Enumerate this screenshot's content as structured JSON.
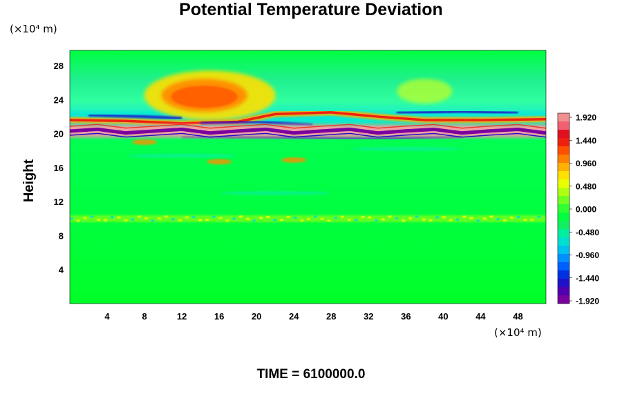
{
  "chart_data": {
    "type": "heatmap",
    "title": "Potential Temperature Deviation",
    "ylabel": "Height",
    "y_units": "(×10⁴ m)",
    "x_units": "(×10⁴ m)",
    "x_ticks": [
      4,
      8,
      12,
      16,
      20,
      24,
      28,
      32,
      36,
      40,
      44,
      48
    ],
    "y_ticks": [
      4,
      8,
      12,
      16,
      20,
      24,
      28
    ],
    "xlim": [
      0,
      51
    ],
    "ylim": [
      0,
      29.8
    ],
    "colorbar": {
      "tick_labels": [
        "1.920",
        "1.440",
        "0.960",
        "0.480",
        "0.000",
        "-0.480",
        "-0.960",
        "-1.440",
        "-1.920"
      ],
      "range": [
        -2.0,
        2.0
      ],
      "colors_low_to_high": [
        "#7a00a0",
        "#5000b0",
        "#2010c8",
        "#0030e0",
        "#0060ff",
        "#0090ff",
        "#00c0f0",
        "#00e0d0",
        "#00f0a0",
        "#10f060",
        "#00ff40",
        "#30ff30",
        "#70ff20",
        "#b0ff10",
        "#e8ff00",
        "#ffe000",
        "#ffb000",
        "#ff8000",
        "#ff5000",
        "#f02010",
        "#e01020",
        "#f06070",
        "#f09090"
      ]
    },
    "features": [
      {
        "name": "warm anomaly",
        "x_center": 15,
        "y_center": 24.5,
        "value": 1.3
      },
      {
        "name": "strong layer",
        "y": 20.3,
        "x_range": [
          0,
          51
        ],
        "value": -1.9
      },
      {
        "name": "weak layer",
        "y": 10.0,
        "x_range": [
          0,
          51
        ],
        "value": 0.3
      }
    ]
  },
  "footer": {
    "time_label": "TIME = 6100000.0"
  }
}
